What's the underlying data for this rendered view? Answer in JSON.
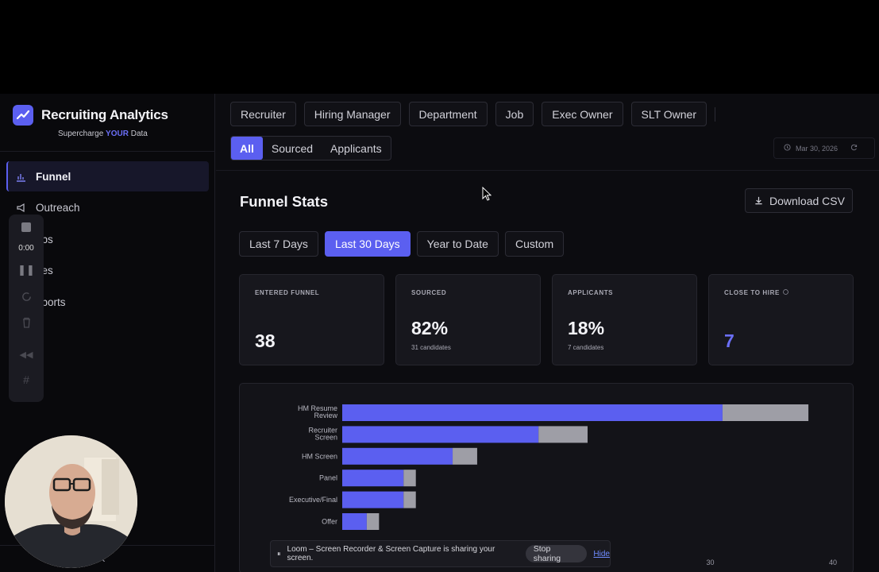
{
  "brand": {
    "title": "Recruiting Analytics",
    "subtitle_pre": "Supercharge ",
    "subtitle_highlight": "YOUR",
    "subtitle_post": " Data",
    "accent": "#5b5ff0"
  },
  "sidebar": {
    "items": [
      {
        "label": "Funnel",
        "icon": "bar-chart-icon",
        "active": true
      },
      {
        "label": "Outreach",
        "icon": "megaphone-icon"
      },
      {
        "label": "obs",
        "icon": "briefcase-icon"
      },
      {
        "label": "ires",
        "icon": "users-icon"
      },
      {
        "label": "eports",
        "icon": "file-icon"
      }
    ],
    "collapse_label": "‹"
  },
  "recorder": {
    "time": "0:00"
  },
  "filters": {
    "items": [
      "Recruiter",
      "Hiring Manager",
      "Department",
      "Job",
      "Exec Owner",
      "SLT Owner"
    ]
  },
  "segment": {
    "items": [
      "All",
      "Sourced",
      "Applicants"
    ],
    "active": 0
  },
  "date": {
    "text": "Mar 30, 2026"
  },
  "page": {
    "title": "Funnel Stats",
    "download_label": "Download CSV"
  },
  "ranges": {
    "items": [
      "Last 7 Days",
      "Last 30 Days",
      "Year to Date",
      "Custom"
    ],
    "active": 1
  },
  "cards": [
    {
      "label": "ENTERED FUNNEL",
      "value": "38",
      "sub": ""
    },
    {
      "label": "SOURCED",
      "value": "82%",
      "sub": "31 candidates"
    },
    {
      "label": "APPLICANTS",
      "value": "18%",
      "sub": "7 candidates"
    },
    {
      "label": "CLOSE TO HIRE",
      "value": "7",
      "sub": "",
      "info_icon": "info-icon",
      "value_color": "#6b6ff7"
    }
  ],
  "chart_data": {
    "type": "bar",
    "orientation": "horizontal",
    "stacked": true,
    "categories": [
      "HM Resume Review",
      "Recruiter Screen",
      "HM Screen",
      "Panel",
      "Executive/Final",
      "Offer"
    ],
    "series": [
      {
        "values": [
          31,
          16,
          9,
          5,
          5,
          2
        ],
        "color": "#5b5ff0"
      },
      {
        "values": [
          7,
          4,
          2,
          1,
          1,
          1
        ],
        "color": "#9e9ea6"
      }
    ],
    "xlim": [
      0,
      40
    ],
    "xticks": [
      30,
      40
    ]
  },
  "share_bar": {
    "pause_icon": "⏸",
    "text": "Loom – Screen Recorder & Screen Capture is sharing your screen.",
    "stop_label": "Stop sharing",
    "hide_label": "Hide"
  }
}
